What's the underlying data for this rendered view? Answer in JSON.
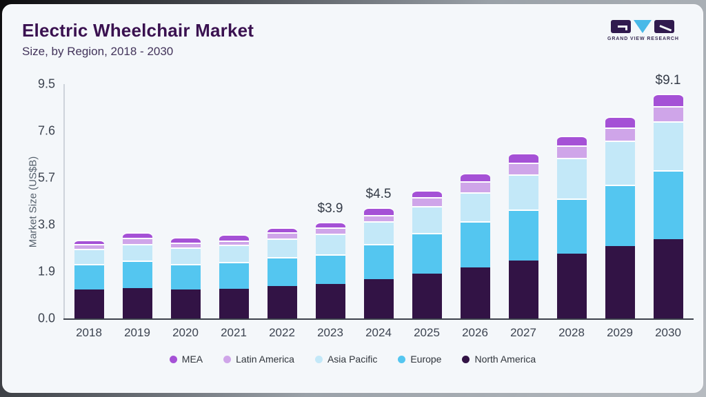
{
  "header": {
    "title": "Electric Wheelchair Market",
    "subtitle": "Size, by Region, 2018 - 2030",
    "brand": "GRAND VIEW RESEARCH"
  },
  "chart_data": {
    "type": "bar",
    "stacked": true,
    "title": "Electric Wheelchair Market Size, by Region, 2018 - 2030",
    "xlabel": "",
    "ylabel": "Market Size (US$B)",
    "unit": "US$B",
    "grid": false,
    "legend_position": "bottom",
    "ylim": [
      0,
      9.5
    ],
    "y_ticks": [
      "0.0",
      "1.9",
      "3.8",
      "5.7",
      "7.6",
      "9.5"
    ],
    "y_tick_values": [
      0,
      1.9,
      3.8,
      5.7,
      7.6,
      9.5
    ],
    "categories": [
      "2018",
      "2019",
      "2020",
      "2021",
      "2022",
      "2023",
      "2024",
      "2025",
      "2026",
      "2027",
      "2028",
      "2029",
      "2030"
    ],
    "stack_order_note": "series listed top-to-bottom as in legend; stacking bottom-to-top is reverse order",
    "series": [
      {
        "name": "MEA",
        "color": "#a551d6",
        "values": [
          0.19,
          0.24,
          0.23,
          0.23,
          0.22,
          0.2,
          0.3,
          0.28,
          0.34,
          0.39,
          0.39,
          0.46,
          0.5
        ]
      },
      {
        "name": "Latin America",
        "color": "#cfa5e9",
        "values": [
          0.2,
          0.23,
          0.19,
          0.17,
          0.23,
          0.27,
          0.26,
          0.37,
          0.44,
          0.46,
          0.51,
          0.53,
          0.61
        ]
      },
      {
        "name": "Asia Pacific",
        "color": "#c3e8f8",
        "values": [
          0.59,
          0.67,
          0.68,
          0.71,
          0.77,
          0.82,
          0.93,
          1.09,
          1.19,
          1.43,
          1.64,
          1.78,
          1.99
        ]
      },
      {
        "name": "Europe",
        "color": "#54c6f0",
        "values": [
          1.05,
          1.14,
          1.02,
          1.08,
          1.16,
          1.22,
          1.41,
          1.63,
          1.86,
          2.07,
          2.22,
          2.5,
          2.79
        ]
      },
      {
        "name": "North America",
        "color": "#321345",
        "values": [
          1.17,
          1.22,
          1.18,
          1.21,
          1.32,
          1.39,
          1.6,
          1.83,
          2.07,
          2.35,
          2.64,
          2.93,
          3.21
        ]
      }
    ],
    "totals": [
      3.2,
      3.5,
      3.3,
      3.4,
      3.7,
      3.9,
      4.5,
      5.2,
      5.9,
      6.7,
      7.4,
      8.2,
      9.1
    ],
    "annotations": [
      {
        "category": "2023",
        "label": "$3.9"
      },
      {
        "category": "2024",
        "label": "$4.5"
      },
      {
        "category": "2030",
        "label": "$9.1"
      }
    ]
  },
  "colors": {
    "card_bg": "#f4f7fa",
    "title": "#3a1150",
    "axis_line": "#3c414b",
    "y_axis_line": "#cdd3da",
    "tick_text": "#3d4450",
    "segment_separator": "#ffffff",
    "logo_block": "#301a4e",
    "logo_triangle": "#49b9e8"
  }
}
